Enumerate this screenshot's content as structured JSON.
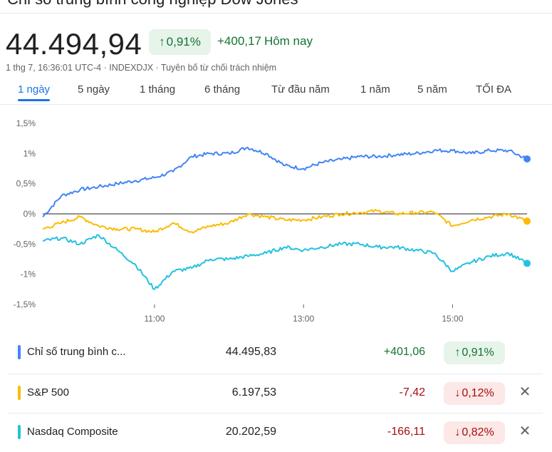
{
  "header": {
    "title": "Chỉ số trung bình công nghiệp Dow Jones",
    "price": "44.494,94",
    "pct_change": "0,91%",
    "abs_change": "+400,17",
    "today_label": "Hôm nay",
    "meta": "1 thg 7, 16:36:01 UTC-4 · INDEXDJX · Tuyên bố từ chối trách nhiệm",
    "arrow_up": "↑"
  },
  "tabs": [
    "1 ngày",
    "5 ngày",
    "1 tháng",
    "6 tháng",
    "Từ đầu năm",
    "1 năm",
    "5 năm",
    "TỐI ĐA"
  ],
  "active_tab": "1 ngày",
  "colors": {
    "dow": "#4285f4",
    "sp500": "#fbbc04",
    "nasdaq": "#24c1e0",
    "up": "#137333",
    "down": "#a50e0e",
    "zero_line": "#202124"
  },
  "chart_data": {
    "type": "line",
    "xlabel": "",
    "ylabel": "",
    "x_ticks": [
      "11:00",
      "13:00",
      "15:00"
    ],
    "y_ticks": [
      1.5,
      1,
      0.5,
      0,
      -0.5,
      -1,
      -1.5
    ],
    "y_tick_labels": [
      "1,5%",
      "1%",
      "0,5%",
      "0%",
      "-0,5%",
      "-1%",
      "-1,5%"
    ],
    "ylim": [
      -1.5,
      1.5
    ],
    "x_range": [
      "09:30",
      "16:00"
    ],
    "grid": false,
    "baseline": 0,
    "series": [
      {
        "name": "Chỉ số trung bình công nghiệp",
        "color": "#4285f4",
        "x": [
          "09:30",
          "09:45",
          "10:00",
          "10:15",
          "10:30",
          "10:45",
          "11:00",
          "11:15",
          "11:30",
          "11:45",
          "12:00",
          "12:15",
          "12:30",
          "12:45",
          "13:00",
          "13:15",
          "13:30",
          "13:45",
          "14:00",
          "14:15",
          "14:30",
          "14:45",
          "15:00",
          "15:15",
          "15:30",
          "15:45",
          "16:00"
        ],
        "values": [
          -0.05,
          0.3,
          0.4,
          0.45,
          0.5,
          0.55,
          0.6,
          0.7,
          0.95,
          1.0,
          1.0,
          1.1,
          1.0,
          0.8,
          0.75,
          0.85,
          0.9,
          0.95,
          0.95,
          0.98,
          1.0,
          1.05,
          1.05,
          1.0,
          1.05,
          1.05,
          0.91
        ]
      },
      {
        "name": "S&P 500",
        "color": "#fbbc04",
        "x": [
          "09:30",
          "09:45",
          "10:00",
          "10:15",
          "10:30",
          "10:45",
          "11:00",
          "11:15",
          "11:30",
          "11:45",
          "12:00",
          "12:15",
          "12:30",
          "12:45",
          "13:00",
          "13:15",
          "13:30",
          "13:45",
          "14:00",
          "14:15",
          "14:30",
          "14:45",
          "15:00",
          "15:15",
          "15:30",
          "15:45",
          "16:00"
        ],
        "values": [
          -0.25,
          -0.15,
          -0.05,
          -0.2,
          -0.25,
          -0.25,
          -0.3,
          -0.15,
          -0.3,
          -0.2,
          -0.15,
          0,
          -0.05,
          -0.1,
          -0.1,
          -0.05,
          0,
          0.02,
          0.05,
          0,
          0.02,
          0.03,
          -0.2,
          -0.1,
          -0.05,
          0,
          -0.12
        ]
      },
      {
        "name": "Nasdaq Composite",
        "color": "#24c1e0",
        "x": [
          "09:30",
          "09:45",
          "10:00",
          "10:15",
          "10:30",
          "10:45",
          "11:00",
          "11:15",
          "11:30",
          "11:45",
          "12:00",
          "12:15",
          "12:30",
          "12:45",
          "13:00",
          "13:15",
          "13:30",
          "13:45",
          "14:00",
          "14:15",
          "14:30",
          "14:45",
          "15:00",
          "15:15",
          "15:30",
          "15:45",
          "16:00"
        ],
        "values": [
          -0.45,
          -0.4,
          -0.5,
          -0.35,
          -0.6,
          -0.85,
          -1.25,
          -0.95,
          -0.9,
          -0.75,
          -0.75,
          -0.7,
          -0.65,
          -0.55,
          -0.6,
          -0.55,
          -0.5,
          -0.5,
          -0.55,
          -0.55,
          -0.6,
          -0.65,
          -0.95,
          -0.8,
          -0.7,
          -0.65,
          -0.82
        ]
      }
    ]
  },
  "rows": [
    {
      "name": "Chỉ số trung bình c...",
      "price": "44.495,83",
      "change": "+401,06",
      "pct": "0,91%",
      "arrow": "↑",
      "dir": "up",
      "color": "#4285f4",
      "removable": false
    },
    {
      "name": "S&P 500",
      "price": "6.197,53",
      "change": "-7,42",
      "pct": "0,12%",
      "arrow": "↓",
      "dir": "down",
      "color": "#fbbc04",
      "removable": true
    },
    {
      "name": "Nasdaq Composite",
      "price": "20.202,59",
      "change": "-166,11",
      "pct": "0,82%",
      "arrow": "↓",
      "dir": "down",
      "color": "#24c1e0",
      "removable": true
    }
  ],
  "close_glyph": "✕"
}
